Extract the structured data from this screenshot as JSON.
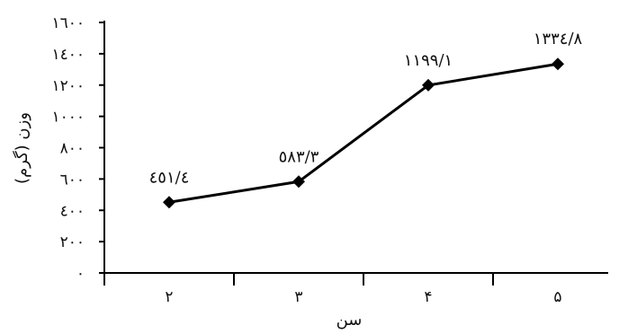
{
  "chart_data": {
    "type": "line",
    "title": "",
    "xlabel": "سن",
    "ylabel": "وزن (گرم)",
    "categories": [
      "۲",
      "۳",
      "۴",
      "۵"
    ],
    "x": [
      2,
      3,
      4,
      5
    ],
    "series": [
      {
        "values": [
          451.4,
          583.3,
          1199.1,
          1334.8
        ],
        "value_labels": [
          "٤٥١/٤",
          "٥٨٣/٣",
          "١١٩٩/١",
          "١٣٣٤/٨"
        ]
      }
    ],
    "ylim": [
      0,
      1600
    ],
    "yticks": [
      0,
      200,
      400,
      600,
      800,
      1000,
      1200,
      1400,
      1600
    ],
    "ytick_labels": [
      "٠",
      "٢٠٠",
      "٤٠٠",
      "٦٠٠",
      "٨٠٠",
      "١٠٠٠",
      "١٢٠٠",
      "١٤٠٠",
      "١٦٠٠"
    ],
    "grid": false,
    "colors": {
      "line": "#000000",
      "marker": "#000000"
    }
  }
}
